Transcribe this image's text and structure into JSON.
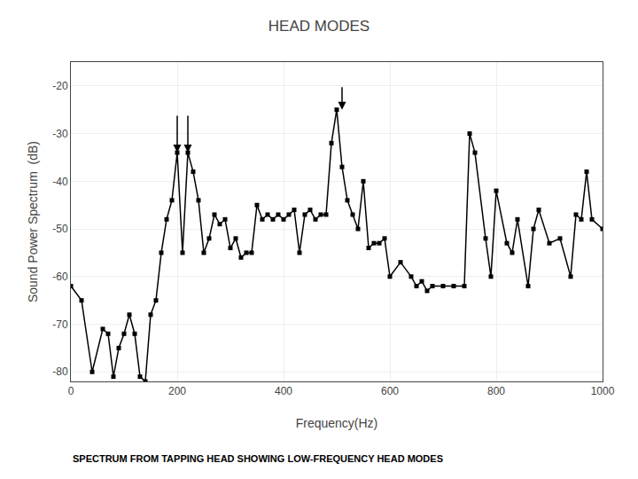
{
  "chart_data": {
    "type": "line",
    "title": "HEAD MODES",
    "subtitle": "SPECTRUM FROM TAPPING HEAD SHOWING LOW-FREQUENCY HEAD MODES",
    "xlabel": "Frequency(Hz)",
    "ylabel": "Sound Power Spectrum  (dB)",
    "x": [
      0,
      20,
      40,
      60,
      70,
      80,
      90,
      100,
      110,
      120,
      130,
      140,
      150,
      160,
      170,
      180,
      190,
      200,
      210,
      220,
      230,
      240,
      250,
      260,
      270,
      280,
      290,
      300,
      310,
      320,
      330,
      340,
      350,
      360,
      370,
      380,
      390,
      400,
      410,
      420,
      430,
      440,
      450,
      460,
      470,
      480,
      490,
      500,
      510,
      520,
      530,
      540,
      550,
      560,
      570,
      580,
      590,
      600,
      620,
      640,
      650,
      660,
      670,
      680,
      700,
      720,
      740,
      750,
      760,
      780,
      790,
      800,
      820,
      830,
      840,
      860,
      870,
      880,
      900,
      920,
      940,
      950,
      960,
      970,
      980,
      1000
    ],
    "values": [
      -62,
      -65,
      -80,
      -71,
      -72,
      -81,
      -75,
      -72,
      -68,
      -72,
      -81,
      -82,
      -68,
      -65,
      -55,
      -48,
      -44,
      -34,
      -55,
      -34,
      -38,
      -44,
      -55,
      -52,
      -47,
      -49,
      -48,
      -54,
      -52,
      -56,
      -55,
      -55,
      -45,
      -48,
      -47,
      -48,
      -47,
      -48,
      -47,
      -46,
      -55,
      -47,
      -46,
      -48,
      -47,
      -47,
      -32,
      -25,
      -37,
      -44,
      -47,
      -50,
      -40,
      -54,
      -53,
      -53,
      -52,
      -60,
      -57,
      -60,
      -62,
      -61,
      -63,
      -62,
      -62,
      -62,
      -62,
      -30,
      -34,
      -52,
      -60,
      -42,
      -53,
      -55,
      -48,
      -62,
      -50,
      -46,
      -53,
      -52,
      -60,
      -47,
      -48,
      -38,
      -48,
      -50
    ],
    "color": "#000000",
    "marker": "square",
    "xlim": [
      0,
      1000
    ],
    "ylim": [
      -82,
      -15
    ],
    "xticks": [
      0,
      200,
      400,
      600,
      800,
      1000
    ],
    "yticks": [
      -80,
      -70,
      -60,
      -50,
      -40,
      -30,
      -20
    ],
    "grid": true,
    "arrows": [
      {
        "x": 200,
        "y_tip": -34,
        "y_tail": -26
      },
      {
        "x": 220,
        "y_tip": -34,
        "y_tail": -26
      },
      {
        "x": 510,
        "y_tip": -25,
        "y_tail": -20
      }
    ]
  }
}
